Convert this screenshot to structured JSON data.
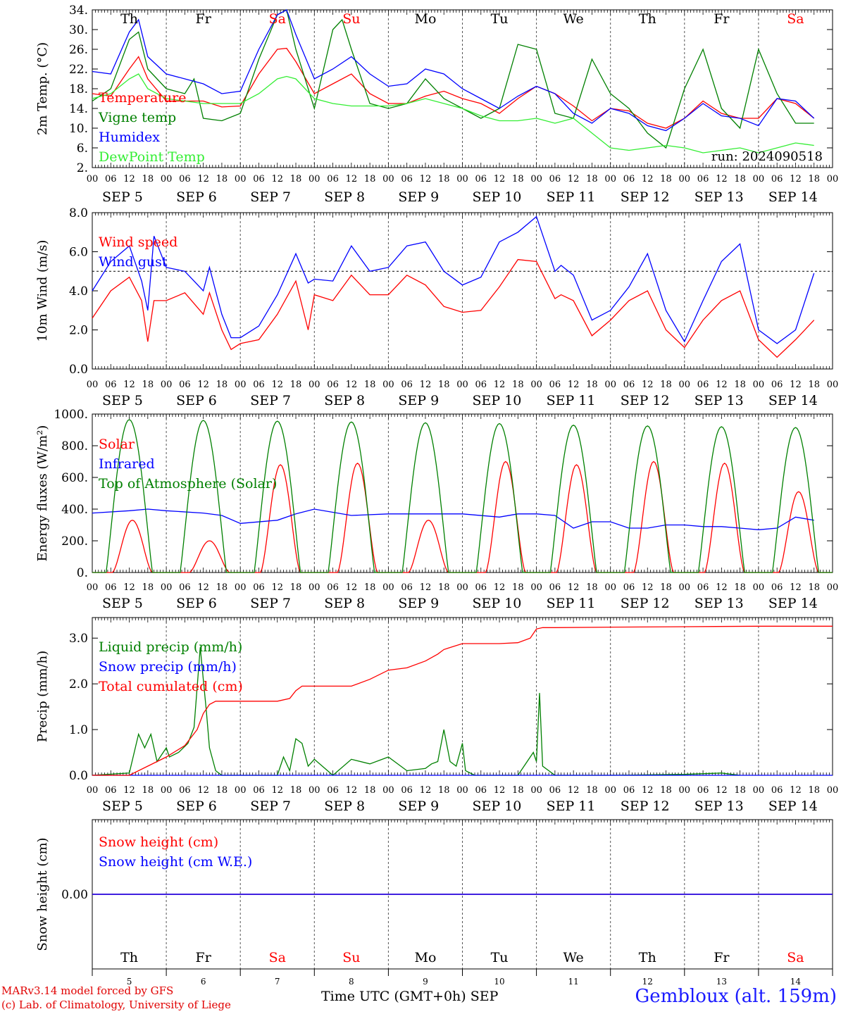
{
  "footer": {
    "model_credit": "MARv3.14 model forced by GFS",
    "lab_credit": "(c) Lab. of Climatology, University of Liege",
    "xaxis_title": "Time UTC (GMT+0h) SEP",
    "station": "Gembloux (alt. 159m)"
  },
  "days": {
    "weekday_labels": [
      "Th",
      "Fr",
      "Sa",
      "Su",
      "Mo",
      "Tu",
      "We",
      "Th",
      "Fr",
      "Sa"
    ],
    "weekend_flags": [
      false,
      false,
      true,
      true,
      false,
      false,
      false,
      false,
      false,
      true
    ],
    "date_labels": [
      "SEP  5",
      "SEP  6",
      "SEP  7",
      "SEP  8",
      "SEP  9",
      "SEP 10",
      "SEP 11",
      "SEP 12",
      "SEP 13",
      "SEP 14"
    ],
    "day_numbers": [
      "5",
      "6",
      "7",
      "8",
      "9",
      "10",
      "11",
      "12",
      "13",
      "14"
    ],
    "hour_ticks": [
      "00",
      "06",
      "12",
      "18"
    ],
    "final_hour_tick": "00"
  },
  "colors": {
    "red": "#ff0000",
    "green": "#008000",
    "blue": "#0000ff",
    "lightgreen": "#33ee33",
    "purple": "#800080",
    "weekend": "#ff0000"
  },
  "chart_data": [
    {
      "type": "line",
      "ylabel": "2m Temp. (°C)",
      "yticks": [
        "34.",
        "30.",
        "26.",
        "22.",
        "18.",
        "14.",
        "10.",
        "6.",
        "2."
      ],
      "ylim": [
        2,
        34
      ],
      "annotation": "run: 2024090518",
      "x_unit": "hours since SEP 5 00 UTC",
      "series": [
        {
          "name": "Temperature",
          "color": "red",
          "x": [
            0,
            6,
            12,
            15,
            18,
            24,
            30,
            36,
            42,
            48,
            54,
            60,
            63,
            66,
            72,
            78,
            84,
            90,
            96,
            102,
            108,
            114,
            120,
            126,
            132,
            138,
            144,
            150,
            156,
            162,
            168,
            174,
            180,
            186,
            192,
            198,
            204,
            210,
            216,
            222,
            228,
            234
          ],
          "values": [
            17,
            16.5,
            22,
            24.5,
            20,
            15.5,
            15.5,
            15.5,
            14.3,
            14.5,
            21,
            26,
            26.2,
            23.5,
            17,
            19,
            21,
            17,
            15,
            15,
            16.5,
            17.5,
            16,
            15,
            13,
            16,
            18.5,
            17,
            14.5,
            11.5,
            14,
            13.5,
            11,
            10,
            12,
            15.5,
            13,
            12,
            12,
            16,
            15,
            12
          ]
        },
        {
          "name": "Vigne temp",
          "color": "green",
          "x": [
            0,
            6,
            12,
            15,
            18,
            24,
            30,
            33,
            36,
            42,
            48,
            54,
            60,
            63,
            66,
            72,
            78,
            81,
            84,
            90,
            96,
            102,
            108,
            114,
            120,
            126,
            132,
            138,
            144,
            150,
            156,
            162,
            168,
            174,
            180,
            186,
            192,
            198,
            204,
            210,
            216,
            222,
            228,
            234
          ],
          "values": [
            15.5,
            18,
            28,
            29.5,
            22,
            18,
            17,
            20,
            12,
            11.5,
            13,
            24,
            33,
            34,
            26,
            14,
            30,
            32,
            26,
            15,
            14,
            15,
            20,
            16,
            14,
            12,
            14,
            27,
            26,
            13,
            12,
            24,
            17,
            14,
            9,
            6,
            18,
            26,
            14,
            10,
            26,
            17,
            11,
            11
          ]
        },
        {
          "name": "Humidex",
          "color": "blue",
          "x": [
            0,
            6,
            12,
            15,
            18,
            24,
            30,
            36,
            42,
            48,
            54,
            60,
            63,
            66,
            72,
            78,
            84,
            90,
            96,
            102,
            108,
            114,
            120,
            126,
            132,
            138,
            144,
            150,
            156,
            162,
            168,
            174,
            180,
            186,
            192,
            198,
            204,
            210,
            216,
            222,
            228,
            234
          ],
          "values": [
            21.5,
            21,
            29.5,
            32,
            24.5,
            21,
            20,
            19,
            17,
            17.5,
            26,
            33,
            34,
            29,
            20,
            22,
            24.5,
            21,
            18.5,
            19,
            22,
            21,
            18,
            16,
            14,
            16.5,
            18.5,
            17,
            13,
            11,
            14,
            13,
            10.5,
            9.5,
            12,
            15,
            12.5,
            12,
            10.5,
            16,
            15.5,
            12
          ]
        },
        {
          "name": "DewPoint Temp",
          "color": "lightgreen",
          "x": [
            0,
            6,
            12,
            15,
            18,
            24,
            30,
            36,
            42,
            48,
            54,
            60,
            63,
            66,
            72,
            78,
            84,
            90,
            96,
            102,
            108,
            114,
            120,
            126,
            132,
            138,
            144,
            150,
            156,
            162,
            168,
            174,
            180,
            186,
            192,
            198,
            204,
            210,
            216,
            222,
            228,
            234
          ],
          "values": [
            16,
            17,
            20,
            21,
            18,
            16,
            15.5,
            15,
            15,
            15,
            17,
            20,
            20.5,
            20,
            16,
            15,
            14.5,
            14.5,
            14.5,
            15,
            16,
            15,
            14,
            12.5,
            11.5,
            11.5,
            12,
            11,
            12,
            9,
            6,
            5.5,
            6,
            6.5,
            6,
            5,
            5.5,
            6,
            5,
            6,
            7,
            6.5
          ]
        }
      ]
    },
    {
      "type": "line",
      "ylabel": "10m Wind (m/s)",
      "yticks": [
        "8.0",
        "6.0",
        "4.0",
        "2.0",
        "0.0"
      ],
      "ylim": [
        0,
        8
      ],
      "reference_line": 5,
      "x_unit": "hours since SEP 5 00 UTC",
      "series": [
        {
          "name": "Wind speed",
          "color": "red",
          "x": [
            0,
            6,
            12,
            16,
            18,
            20,
            24,
            30,
            36,
            38,
            42,
            45,
            48,
            54,
            60,
            66,
            70,
            72,
            78,
            84,
            90,
            96,
            102,
            108,
            114,
            120,
            126,
            132,
            138,
            144,
            150,
            152,
            156,
            162,
            168,
            174,
            180,
            186,
            192,
            198,
            204,
            210,
            216,
            222,
            228,
            234
          ],
          "values": [
            2.6,
            4,
            4.7,
            3.5,
            1.4,
            3.5,
            3.5,
            3.9,
            2.8,
            3.9,
            2,
            1,
            1.3,
            1.5,
            2.8,
            4.5,
            2,
            3.8,
            3.5,
            4.8,
            3.8,
            3.8,
            4.8,
            4.3,
            3.2,
            2.9,
            3,
            4.2,
            5.6,
            5.5,
            3.6,
            3.8,
            3.5,
            1.7,
            2.5,
            3.5,
            4,
            2,
            1.1,
            2.5,
            3.5,
            4,
            1.5,
            0.6,
            1.5,
            2.5
          ]
        },
        {
          "name": "Wind gust",
          "color": "blue",
          "x": [
            0,
            6,
            12,
            16,
            18,
            20,
            24,
            30,
            36,
            38,
            42,
            45,
            48,
            54,
            60,
            66,
            70,
            72,
            78,
            84,
            90,
            96,
            102,
            108,
            114,
            120,
            126,
            132,
            138,
            144,
            150,
            152,
            156,
            162,
            168,
            174,
            180,
            186,
            192,
            198,
            204,
            210,
            216,
            222,
            228,
            234
          ],
          "values": [
            4,
            5.5,
            6.3,
            4.5,
            3,
            6.8,
            5.2,
            5,
            4,
            5.2,
            2.8,
            1.6,
            1.6,
            2.2,
            3.8,
            5.9,
            4.4,
            4.6,
            4.5,
            6.3,
            5,
            5.2,
            6.3,
            6.5,
            5,
            4.3,
            4.7,
            6.5,
            7,
            7.8,
            5,
            5.3,
            4.8,
            2.5,
            3,
            4.2,
            5.9,
            3,
            1.4,
            3.5,
            5.5,
            6.4,
            2,
            1.3,
            2,
            4.9
          ]
        }
      ]
    },
    {
      "type": "line",
      "ylabel": "Energy fluxes (W/m²)",
      "yticks": [
        "1000.",
        "800.",
        "600.",
        "400.",
        "200.",
        "0."
      ],
      "ylim": [
        0,
        1000
      ],
      "x_unit": "hours since SEP 5 00 UTC",
      "series": [
        {
          "name": "Solar",
          "color": "red",
          "peaks_hours": [
            13,
            38,
            61,
            86,
            109,
            134,
            157,
            182,
            205,
            229
          ],
          "peak_values": [
            330,
            200,
            680,
            690,
            330,
            700,
            680,
            700,
            690,
            510
          ]
        },
        {
          "name": "Infrared",
          "color": "blue",
          "x": [
            0,
            12,
            18,
            24,
            36,
            42,
            48,
            60,
            66,
            72,
            84,
            96,
            108,
            120,
            132,
            138,
            144,
            150,
            156,
            162,
            168,
            174,
            180,
            186,
            192,
            198,
            204,
            210,
            216,
            222,
            228,
            234
          ],
          "values": [
            375,
            390,
            400,
            390,
            375,
            360,
            310,
            330,
            370,
            400,
            360,
            370,
            370,
            370,
            350,
            370,
            370,
            360,
            280,
            320,
            320,
            280,
            280,
            300,
            300,
            290,
            290,
            280,
            270,
            280,
            350,
            330
          ]
        },
        {
          "name": "Top of Atmosphere (Solar)",
          "color": "green",
          "peaks_hours": [
            12,
            36,
            60,
            84,
            108,
            132,
            156,
            180,
            204,
            228
          ],
          "peak_values": [
            965,
            960,
            955,
            950,
            945,
            940,
            930,
            925,
            920,
            915
          ]
        }
      ]
    },
    {
      "type": "line",
      "ylabel": "Precip (mm/h)",
      "yticks": [
        "3.0",
        "2.0",
        "1.0",
        "0.0"
      ],
      "ylim": [
        0,
        3.45
      ],
      "x_unit": "hours since SEP 5 00 UTC",
      "series": [
        {
          "name": "Liquid precip (mm/h)",
          "color": "green",
          "x": [
            0,
            12,
            15,
            17,
            19,
            21,
            24,
            25,
            28,
            31,
            33,
            35,
            36,
            37,
            38,
            40,
            42,
            44,
            48,
            60,
            62,
            64,
            66,
            68,
            70,
            72,
            78,
            84,
            90,
            96,
            102,
            108,
            110,
            112,
            114,
            116,
            118,
            120,
            121,
            124,
            132,
            138,
            143,
            144,
            145,
            146,
            150,
            156,
            168,
            192,
            204,
            210
          ],
          "values": [
            0,
            0.05,
            0.9,
            0.6,
            0.9,
            0.3,
            0.6,
            0.4,
            0.5,
            0.7,
            1.05,
            2.8,
            2.1,
            1.4,
            0.6,
            0.1,
            0,
            0,
            0,
            0,
            0.4,
            0.1,
            0.8,
            0.7,
            0.2,
            0.35,
            0,
            0.35,
            0.25,
            0.4,
            0.1,
            0.15,
            0.25,
            0.3,
            1.0,
            0.3,
            0.2,
            0.7,
            0.1,
            0,
            0,
            0,
            0.5,
            0.3,
            1.8,
            0.2,
            0,
            0,
            0,
            0.02,
            0.05,
            0
          ]
        },
        {
          "name": "Snow precip (mm/h)",
          "color": "blue",
          "x": [
            0,
            240
          ],
          "values": [
            0,
            0
          ]
        },
        {
          "name": "Total cumulated (cm)",
          "color": "red",
          "x": [
            0,
            12,
            18,
            24,
            30,
            34,
            36,
            38,
            40,
            48,
            60,
            64,
            66,
            68,
            72,
            84,
            90,
            96,
            102,
            108,
            112,
            114,
            120,
            132,
            138,
            142,
            144,
            146,
            150,
            168,
            192,
            216,
            240
          ],
          "values": [
            0,
            0,
            0.2,
            0.4,
            0.65,
            1.0,
            1.35,
            1.55,
            1.62,
            1.62,
            1.62,
            1.68,
            1.85,
            1.95,
            1.95,
            1.95,
            2.1,
            2.3,
            2.35,
            2.5,
            2.65,
            2.75,
            2.88,
            2.88,
            2.9,
            3.0,
            3.2,
            3.23,
            3.23,
            3.24,
            3.25,
            3.26,
            3.26
          ]
        }
      ]
    },
    {
      "type": "line",
      "ylabel": "Snow height (cm)",
      "yticks": [
        "0.00"
      ],
      "ylim": [
        -1,
        1
      ],
      "x_unit": "hours since SEP 5 00 UTC",
      "series": [
        {
          "name": "Snow height (cm)",
          "color": "red",
          "x": [
            0,
            240
          ],
          "values": [
            0,
            0
          ]
        },
        {
          "name": "Snow height (cm W.E.)",
          "color": "blue",
          "x": [
            0,
            240
          ],
          "values": [
            0,
            0
          ]
        }
      ]
    }
  ]
}
